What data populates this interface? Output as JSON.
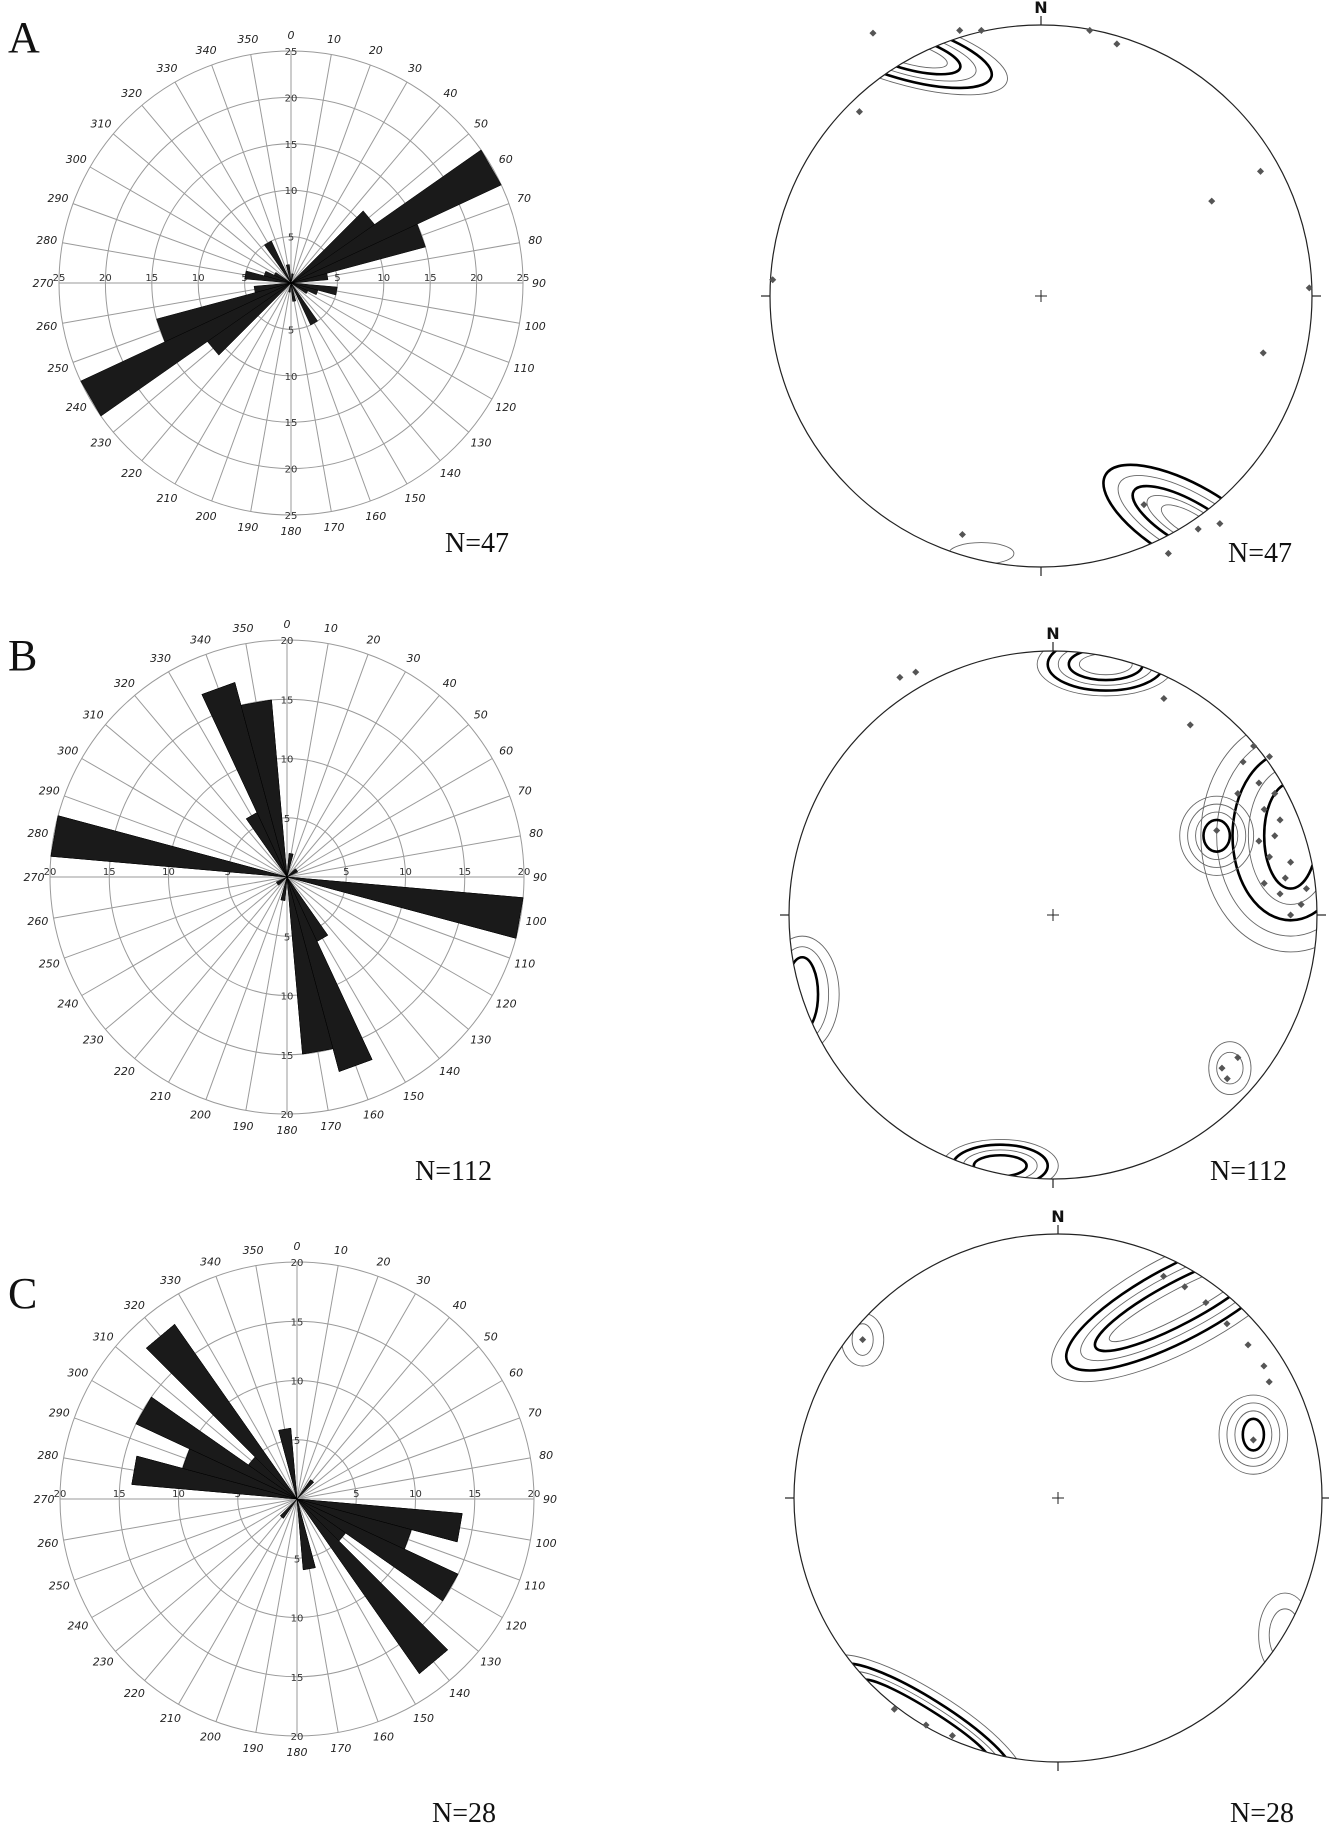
{
  "chart_data": [
    {
      "panel": "A",
      "type": "rose",
      "n_label": "N=47",
      "radial_max": 25,
      "radial_ticks": [
        5,
        10,
        15,
        20,
        25
      ],
      "bidirectional": true,
      "bin_width_deg": 10,
      "bins": [
        {
          "az": 60,
          "value": 25
        },
        {
          "az": 70,
          "value": 15
        },
        {
          "az": 50,
          "value": 11
        },
        {
          "az": 80,
          "value": 4
        },
        {
          "az": 100,
          "value": 5
        },
        {
          "az": 110,
          "value": 3
        },
        {
          "az": 150,
          "value": 2
        },
        {
          "az": 170,
          "value": 2
        },
        {
          "az": 330,
          "value": 5
        },
        {
          "az": 10,
          "value": 1
        },
        {
          "az": 120,
          "value": 2
        }
      ],
      "stereonet": {
        "north_label": "N",
        "n_label": "N=47",
        "points": [
          [
            -0.62,
            0.97
          ],
          [
            -0.3,
            0.98
          ],
          [
            -0.22,
            0.98
          ],
          [
            0.18,
            0.98
          ],
          [
            0.28,
            0.93
          ],
          [
            -0.67,
            0.68
          ],
          [
            0.81,
            0.46
          ],
          [
            0.63,
            0.35
          ],
          [
            -0.99,
            0.06
          ],
          [
            0.99,
            0.03
          ],
          [
            0.82,
            -0.21
          ],
          [
            0.38,
            -0.77
          ],
          [
            -0.29,
            -0.88
          ],
          [
            0.47,
            -0.95
          ],
          [
            0.58,
            -0.86
          ],
          [
            0.66,
            -0.84
          ]
        ],
        "contours": [
          {
            "cx": -0.5,
            "cy": 0.9,
            "rx": [
              0.16,
              0.21,
              0.27,
              0.33,
              0.39
            ],
            "ry": [
              0.04,
              0.06,
              0.08,
              0.1,
              0.12
            ],
            "rot": 16,
            "bold": [
              1,
              3
            ]
          },
          {
            "cx": 0.55,
            "cy": -0.84,
            "rx": [
              0.12,
              0.18,
              0.24,
              0.3,
              0.36
            ],
            "ry": [
              0.04,
              0.06,
              0.08,
              0.11,
              0.14
            ],
            "rot": 30,
            "bold": [
              2,
              4
            ]
          },
          {
            "cx": -0.22,
            "cy": -0.95,
            "rx": [
              0.12
            ],
            "ry": [
              0.04
            ],
            "rot": 0,
            "bold": []
          }
        ]
      }
    },
    {
      "panel": "B",
      "type": "rose",
      "n_label": "N=112",
      "radial_max": 20,
      "radial_ticks": [
        5,
        10,
        15,
        20
      ],
      "bidirectional": true,
      "bin_width_deg": 10,
      "bins": [
        {
          "az": 280,
          "value": 20
        },
        {
          "az": 100,
          "value": 20
        },
        {
          "az": 340,
          "value": 17
        },
        {
          "az": 160,
          "value": 17
        },
        {
          "az": 350,
          "value": 15
        },
        {
          "az": 170,
          "value": 15
        },
        {
          "az": 330,
          "value": 6
        },
        {
          "az": 150,
          "value": 6
        },
        {
          "az": 10,
          "value": 2
        },
        {
          "az": 190,
          "value": 2
        },
        {
          "az": 60,
          "value": 1
        },
        {
          "az": 230,
          "value": 1
        }
      ],
      "stereonet": {
        "north_label": "N",
        "n_label": "N=112",
        "points": [
          [
            -0.52,
            0.92
          ],
          [
            -0.58,
            0.9
          ],
          [
            0.42,
            0.82
          ],
          [
            0.52,
            0.72
          ],
          [
            0.76,
            0.64
          ],
          [
            0.82,
            0.6
          ],
          [
            0.78,
            0.5
          ],
          [
            0.84,
            0.46
          ],
          [
            0.8,
            0.4
          ],
          [
            0.86,
            0.36
          ],
          [
            0.84,
            0.3
          ],
          [
            0.78,
            0.28
          ],
          [
            0.82,
            0.22
          ],
          [
            0.9,
            0.2
          ],
          [
            0.88,
            0.14
          ],
          [
            0.8,
            0.12
          ],
          [
            0.86,
            0.08
          ],
          [
            0.94,
            0.04
          ],
          [
            0.9,
            0.0
          ],
          [
            0.96,
            0.1
          ],
          [
            0.72,
            0.58
          ],
          [
            0.7,
            0.46
          ],
          [
            0.62,
            0.32
          ],
          [
            0.64,
            -0.58
          ],
          [
            0.66,
            -0.62
          ],
          [
            0.7,
            -0.54
          ]
        ],
        "contours": [
          {
            "cx": 0.2,
            "cy": 0.95,
            "rx": [
              0.1,
              0.14,
              0.18,
              0.22,
              0.26
            ],
            "ry": [
              0.04,
              0.06,
              0.08,
              0.1,
              0.12
            ],
            "rot": 0,
            "bold": [
              1,
              3
            ]
          },
          {
            "cx": 0.9,
            "cy": 0.3,
            "rx": [
              0.1,
              0.16,
              0.22,
              0.28,
              0.34
            ],
            "ry": [
              0.2,
              0.26,
              0.32,
              0.38,
              0.44
            ],
            "rot": 0,
            "bold": [
              0,
              2
            ]
          },
          {
            "cx": 0.62,
            "cy": 0.3,
            "rx": [
              0.05,
              0.08,
              0.11,
              0.14
            ],
            "ry": [
              0.06,
              0.09,
              0.12,
              0.15
            ],
            "rot": 0,
            "bold": [
              0
            ]
          },
          {
            "cx": -0.95,
            "cy": -0.3,
            "rx": [
              0.06,
              0.1,
              0.14
            ],
            "ry": [
              0.14,
              0.18,
              0.22
            ],
            "rot": 0,
            "bold": [
              0
            ]
          },
          {
            "cx": -0.2,
            "cy": -0.95,
            "rx": [
              0.1,
              0.14,
              0.18,
              0.22
            ],
            "ry": [
              0.04,
              0.06,
              0.08,
              0.1
            ],
            "rot": 0,
            "bold": [
              0,
              2
            ]
          },
          {
            "cx": 0.67,
            "cy": -0.58,
            "rx": [
              0.05,
              0.08
            ],
            "ry": [
              0.06,
              0.1
            ],
            "rot": 0,
            "bold": []
          }
        ]
      }
    },
    {
      "panel": "C",
      "type": "rose",
      "n_label": "N=28",
      "radial_max": 20,
      "radial_ticks": [
        5,
        10,
        15,
        20
      ],
      "bidirectional": true,
      "bin_width_deg": 10,
      "bins": [
        {
          "az": 320,
          "value": 18
        },
        {
          "az": 140,
          "value": 18
        },
        {
          "az": 300,
          "value": 15
        },
        {
          "az": 120,
          "value": 15
        },
        {
          "az": 280,
          "value": 14
        },
        {
          "az": 100,
          "value": 14
        },
        {
          "az": 290,
          "value": 10
        },
        {
          "az": 110,
          "value": 10
        },
        {
          "az": 350,
          "value": 6
        },
        {
          "az": 170,
          "value": 6
        },
        {
          "az": 310,
          "value": 5
        },
        {
          "az": 130,
          "value": 5
        },
        {
          "az": 40,
          "value": 2
        },
        {
          "az": 220,
          "value": 2
        }
      ],
      "stereonet": {
        "north_label": "N",
        "n_label": "N=28",
        "points": [
          [
            0.4,
            0.84
          ],
          [
            0.48,
            0.8
          ],
          [
            0.56,
            0.74
          ],
          [
            0.64,
            0.66
          ],
          [
            0.72,
            0.58
          ],
          [
            0.78,
            0.5
          ],
          [
            0.8,
            0.44
          ],
          [
            -0.74,
            0.6
          ],
          [
            0.74,
            0.22
          ],
          [
            -0.62,
            -0.8
          ],
          [
            -0.5,
            -0.86
          ],
          [
            -0.4,
            -0.9
          ]
        ],
        "contours": [
          {
            "cx": 0.46,
            "cy": 0.74,
            "rx": [
              0.3,
              0.36,
              0.42,
              0.48,
              0.54
            ],
            "ry": [
              0.05,
              0.08,
              0.11,
              0.14,
              0.18
            ],
            "rot": -28,
            "bold": [
              1,
              3
            ]
          },
          {
            "cx": 0.74,
            "cy": 0.24,
            "rx": [
              0.04,
              0.07,
              0.1,
              0.13
            ],
            "ry": [
              0.06,
              0.09,
              0.12,
              0.15
            ],
            "rot": 0,
            "bold": [
              0
            ]
          },
          {
            "cx": -0.74,
            "cy": 0.6,
            "rx": [
              0.04,
              0.08
            ],
            "ry": [
              0.06,
              0.1
            ],
            "rot": 0,
            "bold": []
          },
          {
            "cx": -0.5,
            "cy": -0.84,
            "rx": [
              0.28,
              0.33,
              0.38,
              0.43
            ],
            "ry": [
              0.04,
              0.06,
              0.08,
              0.11
            ],
            "rot": 32,
            "bold": [
              0,
              2
            ]
          },
          {
            "cx": 0.86,
            "cy": -0.52,
            "rx": [
              0.06,
              0.1
            ],
            "ry": [
              0.1,
              0.16
            ],
            "rot": 0,
            "bold": []
          }
        ]
      }
    }
  ]
}
